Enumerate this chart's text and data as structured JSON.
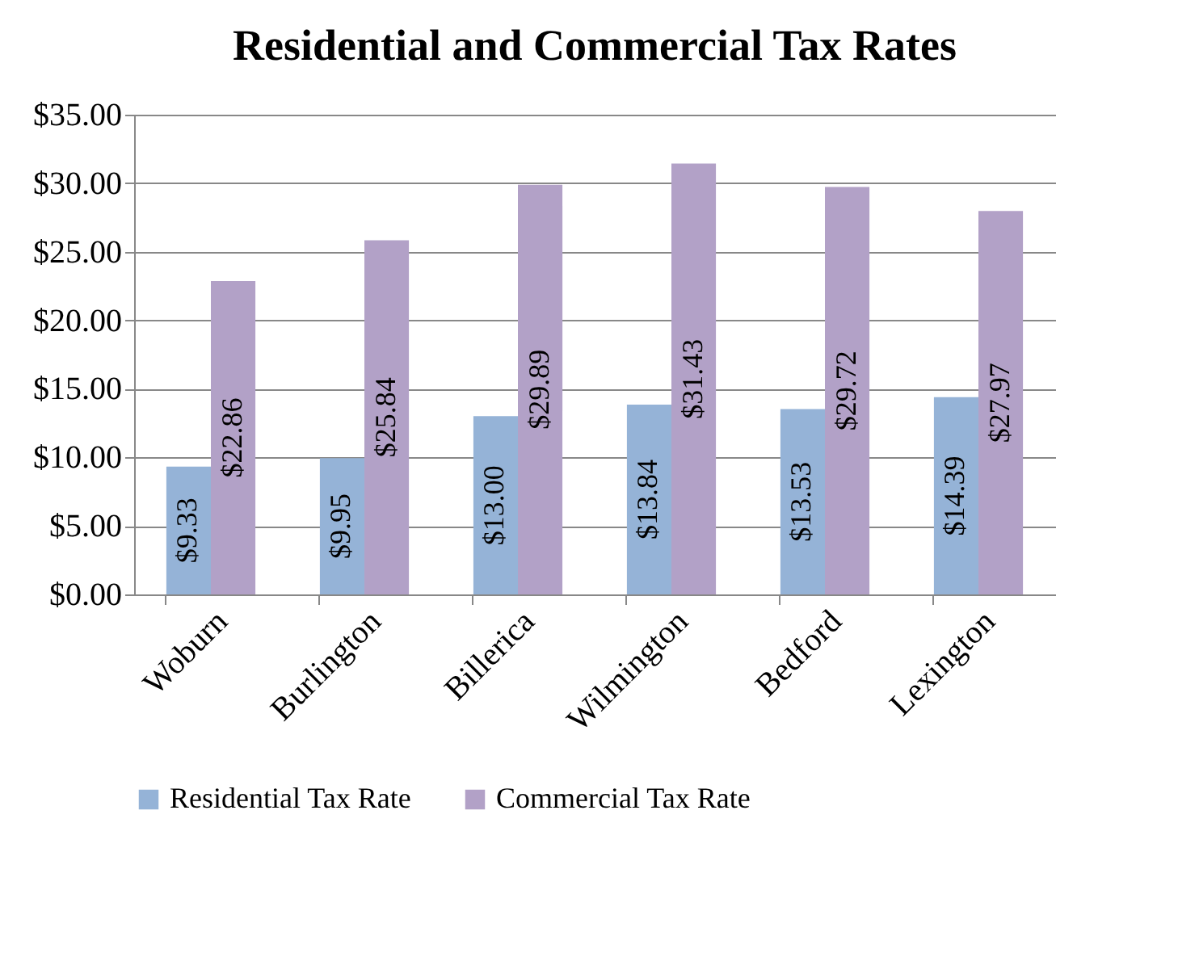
{
  "chart_data": {
    "type": "bar",
    "title": "Residential and Commercial Tax Rates",
    "categories": [
      "Woburn",
      "Burlington",
      "Billerica",
      "Wilmington",
      "Bedford",
      "Lexington"
    ],
    "series": [
      {
        "name": "Residential Tax Rate",
        "color": "#95b3d7",
        "values": [
          9.33,
          9.95,
          13.0,
          13.84,
          13.53,
          14.39
        ],
        "value_labels": [
          "$9.33",
          "$9.95",
          "$13.00",
          "$13.84",
          "$13.53",
          "$14.39"
        ]
      },
      {
        "name": "Commercial Tax Rate",
        "color": "#b2a1c7",
        "values": [
          22.86,
          25.84,
          29.89,
          31.43,
          29.72,
          27.97
        ],
        "value_labels": [
          "$22.86",
          "$25.84",
          "$29.89",
          "$31.43",
          "$29.72",
          "$27.97"
        ]
      }
    ],
    "ylim": [
      0,
      35
    ],
    "yticks": [
      {
        "value": 0,
        "label": "$0.00"
      },
      {
        "value": 5,
        "label": "$5.00"
      },
      {
        "value": 10,
        "label": "$10.00"
      },
      {
        "value": 15,
        "label": "$15.00"
      },
      {
        "value": 20,
        "label": "$20.00"
      },
      {
        "value": 25,
        "label": "$25.00"
      },
      {
        "value": 30,
        "label": "$30.00"
      },
      {
        "value": 35,
        "label": "$35.00"
      }
    ],
    "grid": "y",
    "legend": "bottom"
  }
}
